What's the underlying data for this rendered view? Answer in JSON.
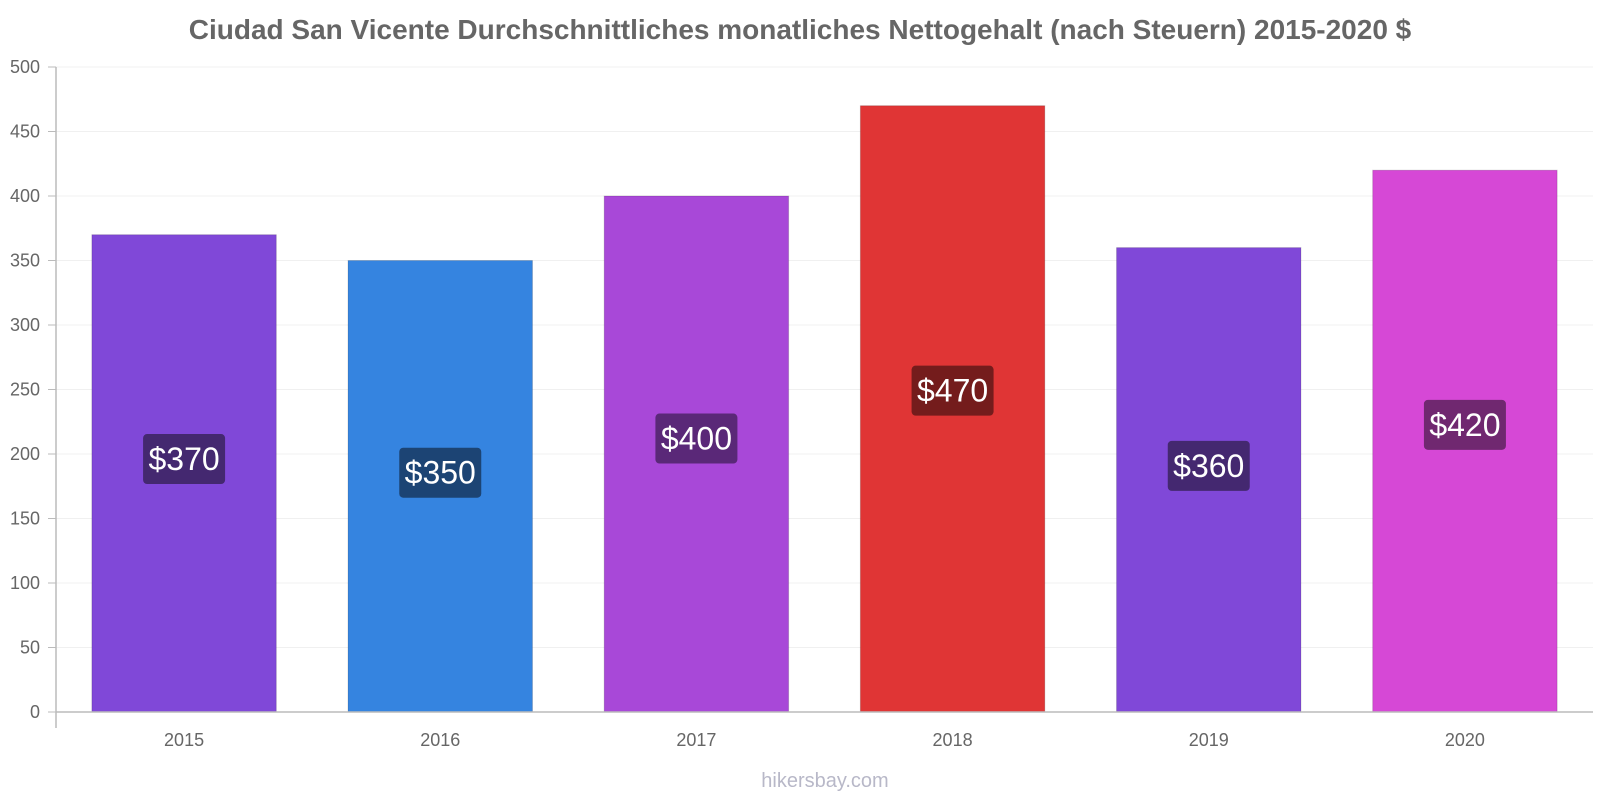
{
  "chart_data": {
    "type": "bar",
    "title": "Ciudad San Vicente Durchschnittliches monatliches Nettogehalt (nach Steuern) 2015-2020 $",
    "categories": [
      "2015",
      "2016",
      "2017",
      "2018",
      "2019",
      "2020"
    ],
    "values": [
      370,
      350,
      400,
      470,
      360,
      420
    ],
    "value_labels": [
      "$370",
      "$350",
      "$400",
      "$470",
      "$360",
      "$420"
    ],
    "bar_colors": [
      "#8048d8",
      "#3584e0",
      "#a848d8",
      "#e03535",
      "#8048d8",
      "#d648d6"
    ],
    "label_box_colors": [
      "#442870",
      "#1c4474",
      "#5a2878",
      "#741c1c",
      "#442870",
      "#702870"
    ],
    "yticks": [
      "0",
      "50",
      "100",
      "150",
      "200",
      "250",
      "300",
      "350",
      "400",
      "450",
      "500"
    ],
    "ylim": [
      0,
      500
    ],
    "xlabel": "",
    "ylabel": "",
    "grid": true,
    "legend": "none"
  },
  "footer": {
    "watermark": "hikersbay.com"
  }
}
